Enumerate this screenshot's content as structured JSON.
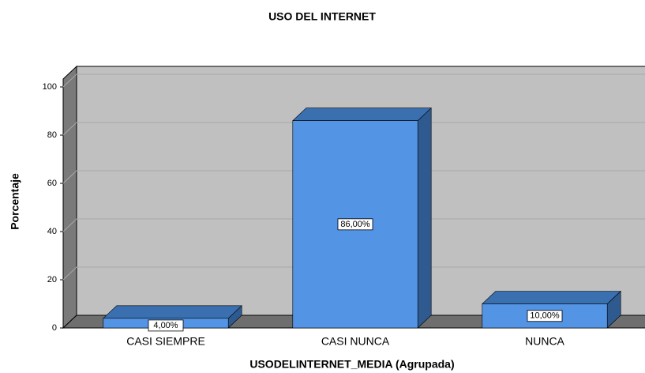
{
  "chart_data": {
    "type": "bar3d",
    "title": "USO DEL  INTERNET",
    "x_label": "USODELINTERNET_MEDIA (Agrupada)",
    "y_label": "Porcentaje",
    "categories": [
      "CASI SIEMPRE",
      "CASI NUNCA",
      "NUNCA"
    ],
    "values": [
      4,
      86,
      10
    ],
    "value_labels": [
      "4,00%",
      "86,00%",
      "10,00%"
    ],
    "color": "#5394e5",
    "ylim": [
      0,
      100
    ],
    "yticks": [
      0,
      20,
      40,
      60,
      80,
      100
    ],
    "grid": true
  }
}
